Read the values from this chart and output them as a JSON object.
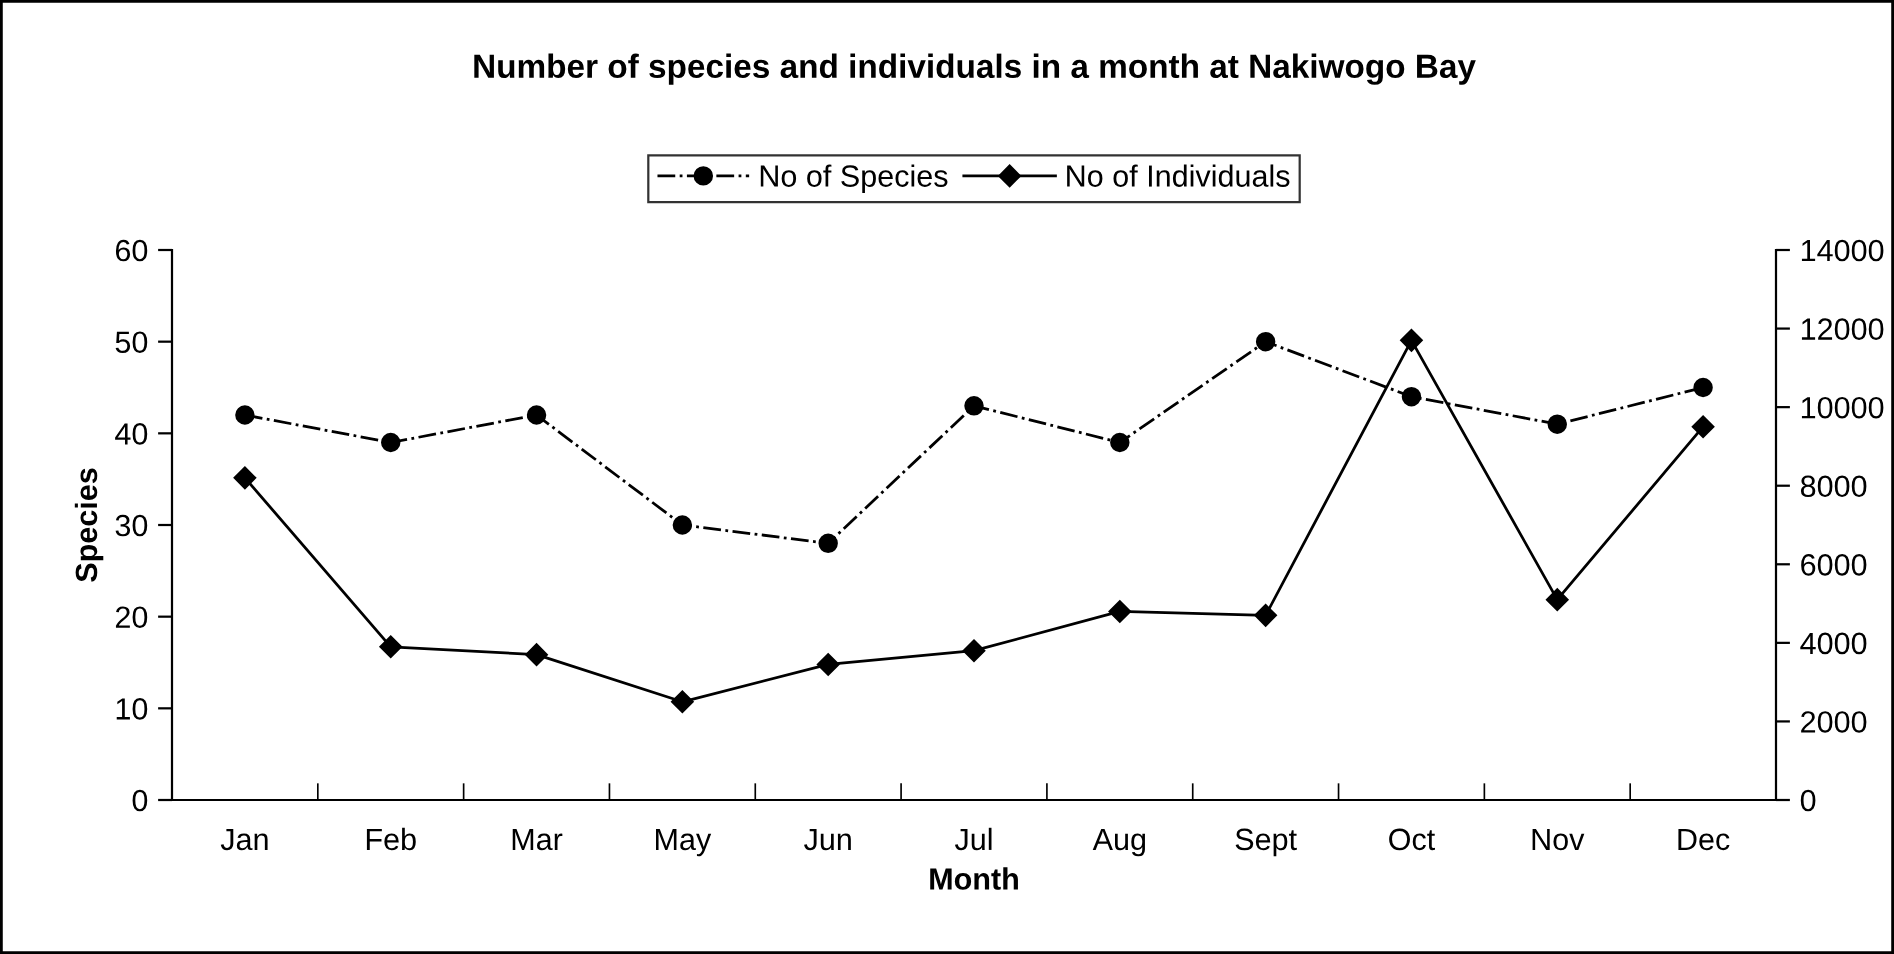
{
  "chart_data": {
    "type": "line",
    "title": "Number of species and individuals in a month at Nakiwogo Bay",
    "xlabel": "Month",
    "ylabel": "Species",
    "categories": [
      "Jan",
      "Feb",
      "Mar",
      "May",
      "Jun",
      "Jul",
      "Aug",
      "Sept",
      "Oct",
      "Nov",
      "Dec"
    ],
    "series": [
      {
        "name": "No of Species",
        "color": "#000000",
        "marker": "circle",
        "line_style": "dashdot",
        "values": [
          42,
          39,
          42,
          30,
          28,
          43,
          39,
          50,
          44,
          41,
          45
        ]
      },
      {
        "name": "No of Individuals",
        "color": "#000000",
        "marker": "diamond",
        "line_style": "solid",
        "axis": "y2",
        "values": [
          8200,
          3900,
          3700,
          2500,
          3450,
          3800,
          4800,
          4700,
          11700,
          5100,
          9500
        ]
      }
    ],
    "ylim": [
      0,
      60
    ],
    "yticks": [
      0,
      10,
      20,
      30,
      40,
      50,
      60
    ],
    "y2lim": [
      0,
      14000
    ],
    "y2ticks": [
      0,
      2000,
      4000,
      6000,
      8000,
      10000,
      12000,
      14000
    ],
    "grid": false,
    "legend": "top"
  }
}
